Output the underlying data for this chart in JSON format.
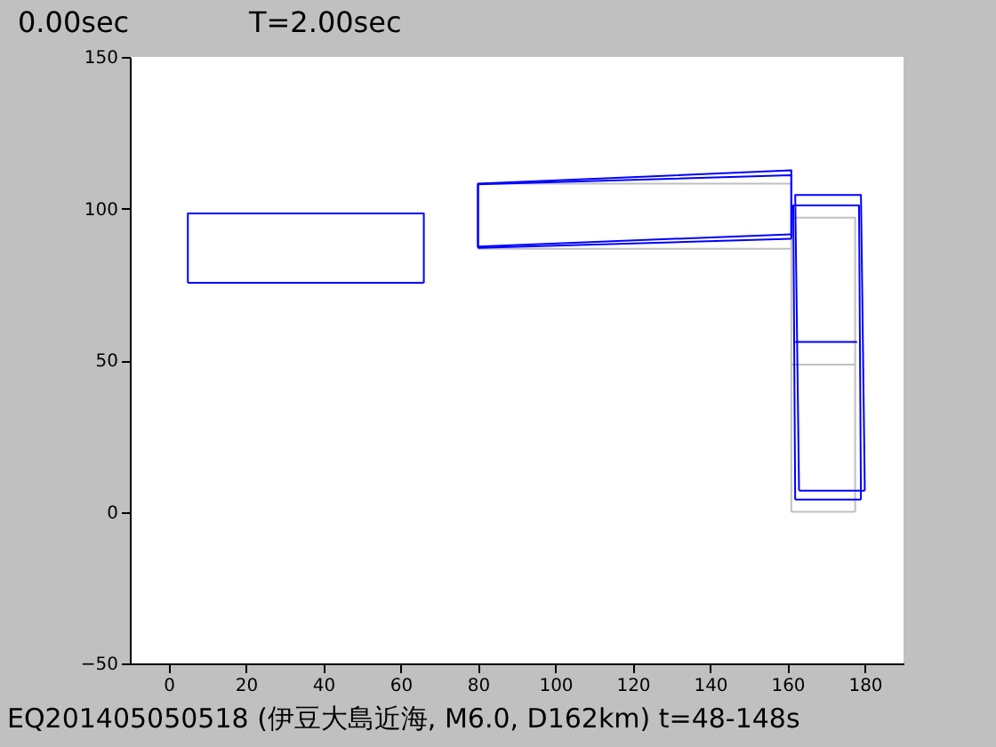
{
  "chart_data": {
    "type": "line",
    "title": "0.00sec",
    "annotations": [
      "T=2.00sec",
      "EQ201405050518 (伊豆大島近海, M6.0, D162km) t=48-148s"
    ],
    "xlim": [
      -10,
      190
    ],
    "xticks": [
      0,
      20,
      40,
      60,
      80,
      100,
      120,
      140,
      160,
      180
    ],
    "ylim": [
      -50,
      150
    ],
    "yticks": [
      -50,
      0,
      50,
      100,
      150
    ],
    "grid": false,
    "legend": false,
    "marker": "none",
    "series": [
      {
        "color": "#0000ff",
        "x": [
          5,
          5,
          66,
          66
        ],
        "values": [
          75.5,
          98.4,
          98.4,
          75.5
        ]
      },
      {
        "color": "#0000ff",
        "x": [
          5,
          66
        ],
        "values": [
          75.5,
          75.5
        ]
      },
      {
        "color": "#c0c0c0",
        "x": [
          80,
          80,
          161,
          161
        ],
        "values": [
          86.7,
          108.2,
          108.2,
          86.7
        ]
      },
      {
        "color": "#c0c0c0",
        "x": [
          80,
          161
        ],
        "values": [
          86.7,
          86.7
        ]
      },
      {
        "color": "#c0c0c0",
        "x": [
          161,
          161,
          177.5,
          177.5
        ],
        "values": [
          0,
          97,
          97,
          0
        ]
      },
      {
        "color": "#c0c0c0",
        "x": [
          161,
          177.5
        ],
        "values": [
          0,
          0
        ]
      },
      {
        "color": "#c0c0c0",
        "x": [
          161,
          177.5
        ],
        "values": [
          48.5,
          48.5
        ]
      },
      {
        "color": "#0000ff",
        "x": [
          80,
          80,
          161,
          161
        ],
        "values": [
          87,
          108,
          111,
          90
        ]
      },
      {
        "color": "#0000ff",
        "x": [
          80,
          161
        ],
        "values": [
          87,
          90
        ]
      },
      {
        "color": "#0000ff",
        "x": [
          80,
          80,
          161,
          161
        ],
        "values": [
          87.5,
          108.2,
          112.6,
          91.5
        ]
      },
      {
        "color": "#0000ff",
        "x": [
          80,
          161
        ],
        "values": [
          87.5,
          91.5
        ]
      },
      {
        "color": "#0000ff",
        "x": [
          162,
          161.5,
          178.5,
          179
        ],
        "values": [
          4,
          101,
          101,
          4
        ]
      },
      {
        "color": "#0000ff",
        "x": [
          162,
          179
        ],
        "values": [
          4,
          4
        ]
      },
      {
        "color": "#0000ff",
        "x": [
          163,
          162,
          179,
          180
        ],
        "values": [
          7,
          104.5,
          104.5,
          7
        ]
      },
      {
        "color": "#0000ff",
        "x": [
          163,
          180
        ],
        "values": [
          7,
          7
        ]
      },
      {
        "color": "#0000ff",
        "x": [
          162,
          178
        ],
        "values": [
          56,
          56
        ]
      }
    ]
  }
}
